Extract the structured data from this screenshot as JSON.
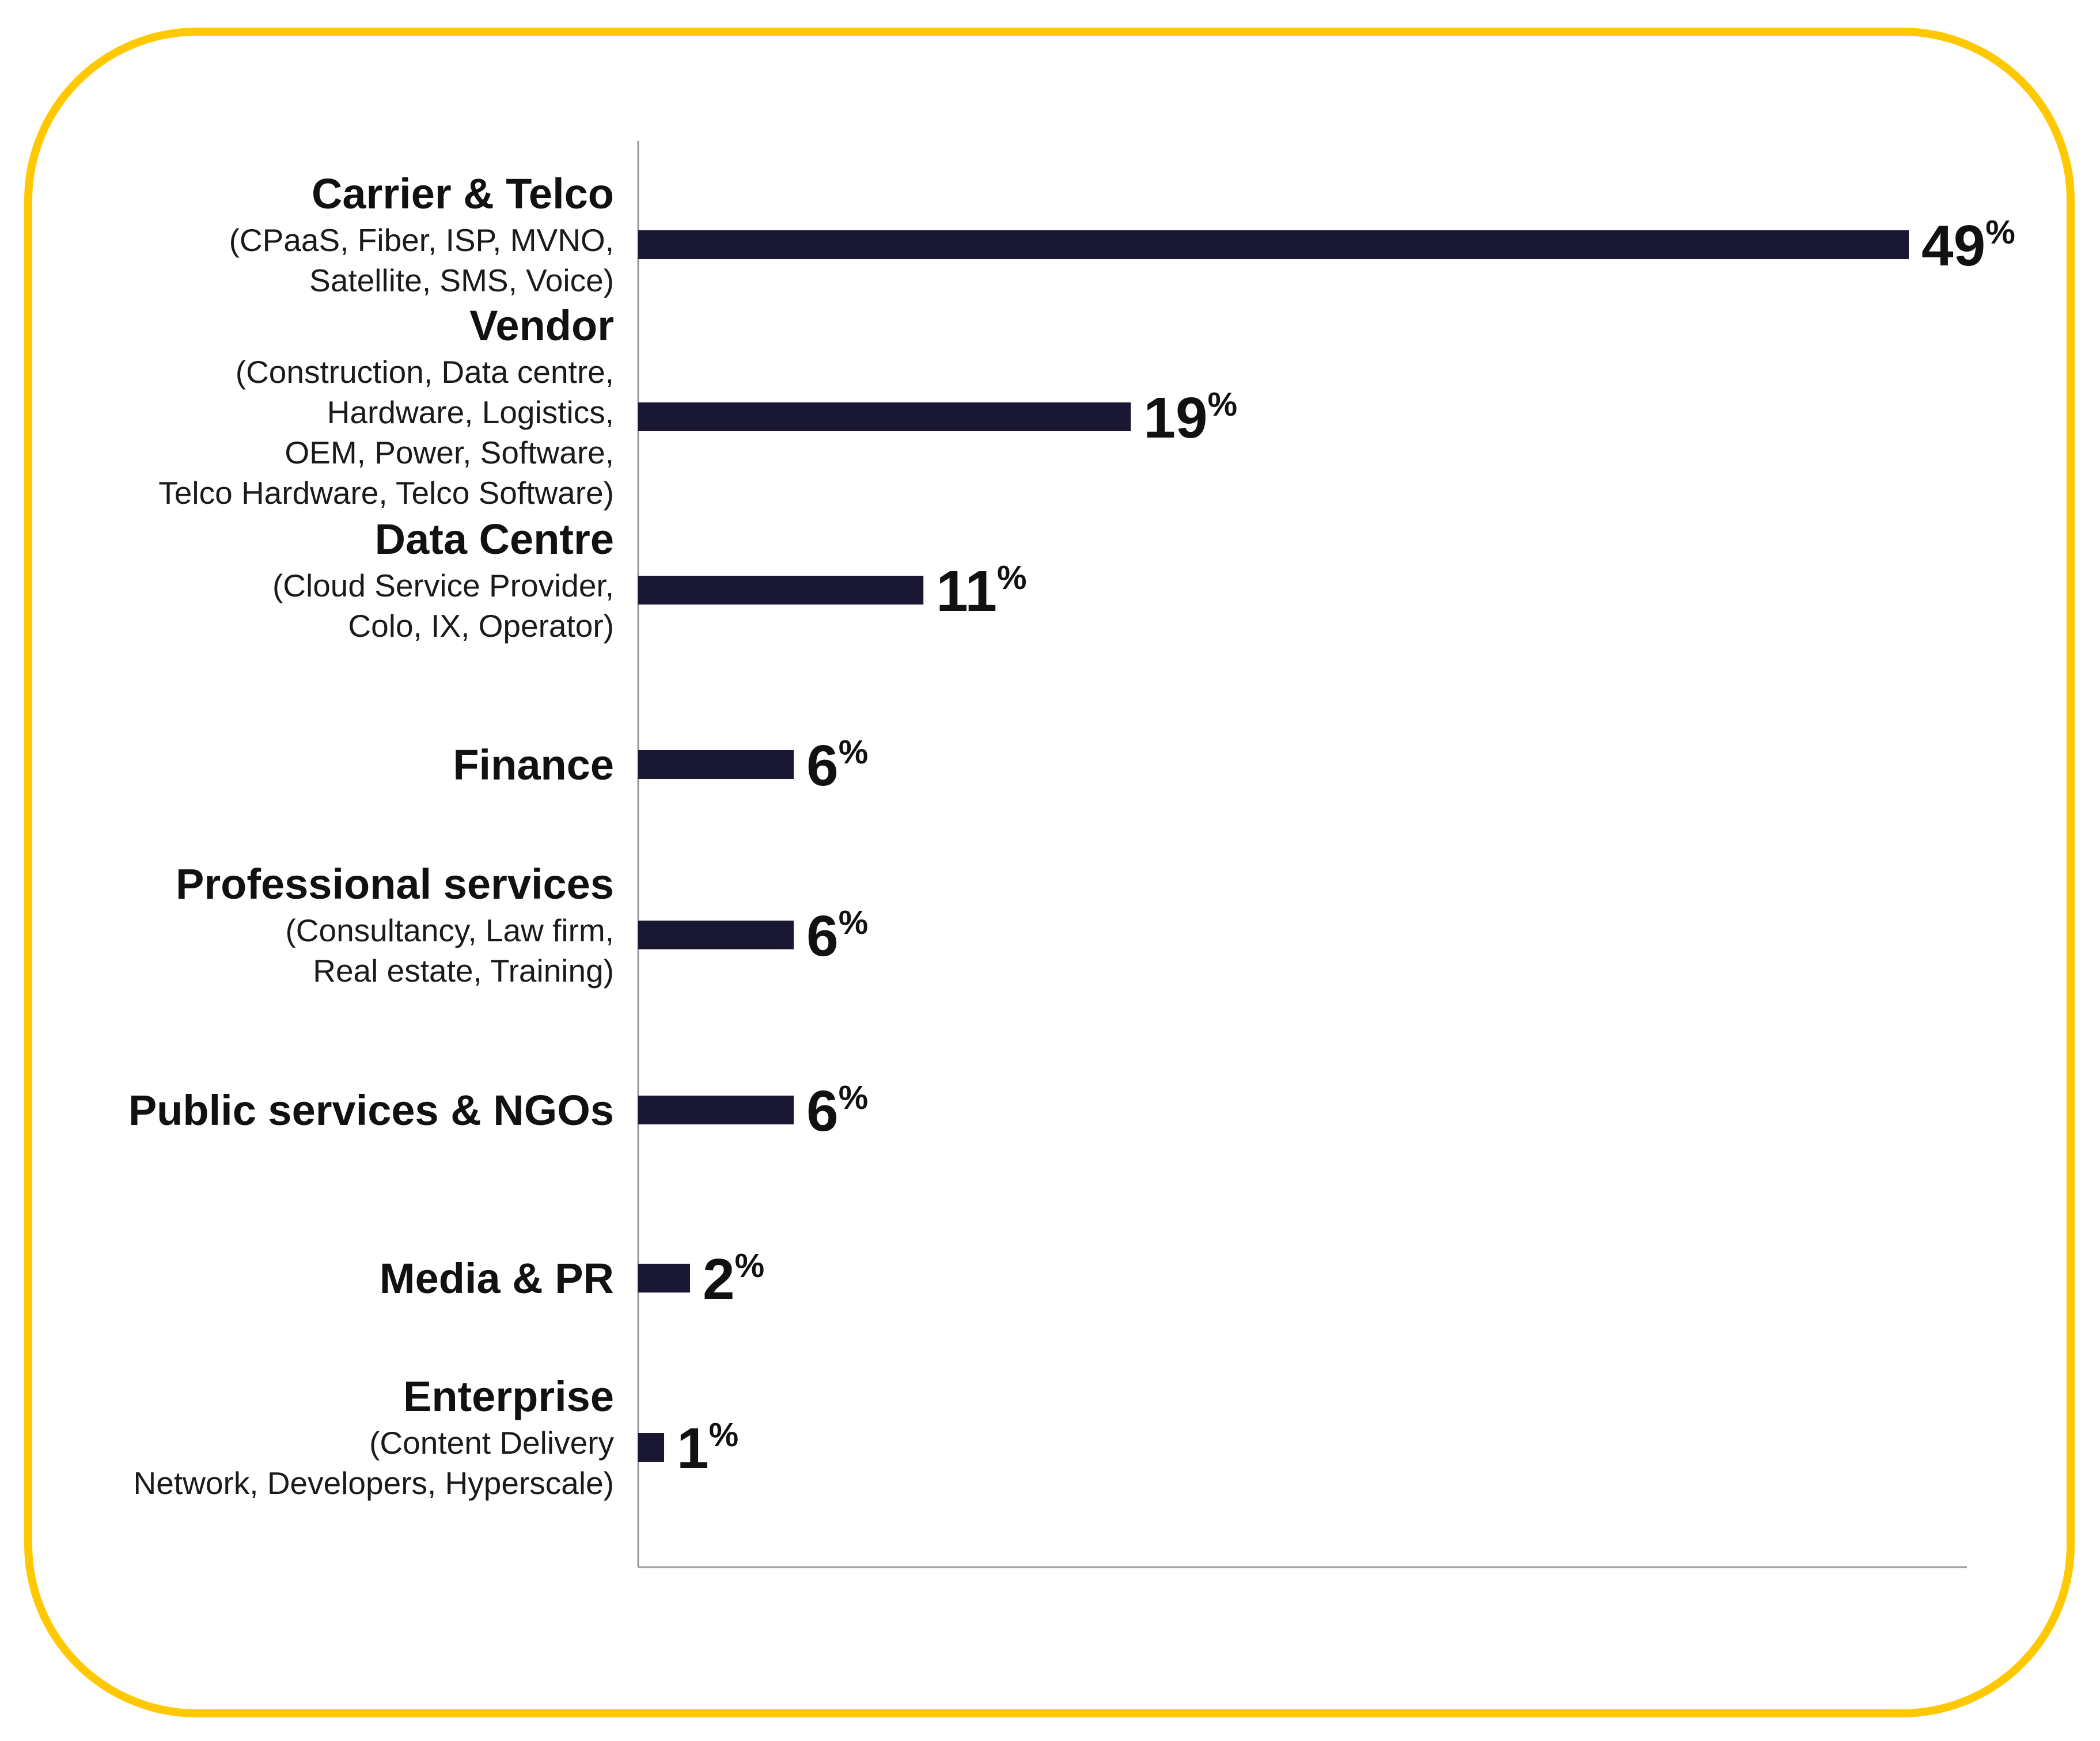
{
  "colors": {
    "frame": "#FFC800",
    "bar": "#191731",
    "axis": "#9a9a9a",
    "text": "#111111"
  },
  "chart_data": {
    "type": "bar",
    "orientation": "horizontal",
    "grid": false,
    "xlim": [
      0,
      49
    ],
    "unit": "%",
    "categories": [
      {
        "title": "Carrier & Telco",
        "subtitle": [
          "(CPaaS, Fiber, ISP, MVNO,",
          "Satellite, SMS, Voice)"
        ],
        "value": 49
      },
      {
        "title": "Vendor",
        "subtitle": [
          "(Construction, Data centre,",
          "Hardware, Logistics,",
          "OEM, Power, Software,",
          "Telco Hardware, Telco Software)"
        ],
        "value": 19
      },
      {
        "title": "Data Centre",
        "subtitle": [
          "(Cloud Service Provider,",
          "Colo, IX, Operator)"
        ],
        "value": 11
      },
      {
        "title": "Finance",
        "subtitle": [],
        "value": 6
      },
      {
        "title": "Professional services",
        "subtitle": [
          "(Consultancy, Law firm,",
          "Real estate, Training)"
        ],
        "value": 6
      },
      {
        "title": "Public services & NGOs",
        "subtitle": [],
        "value": 6
      },
      {
        "title": "Media & PR",
        "subtitle": [],
        "value": 2
      },
      {
        "title": "Enterprise",
        "subtitle": [
          "(Content Delivery",
          "Network, Developers, Hyperscale)"
        ],
        "value": 1
      }
    ]
  }
}
